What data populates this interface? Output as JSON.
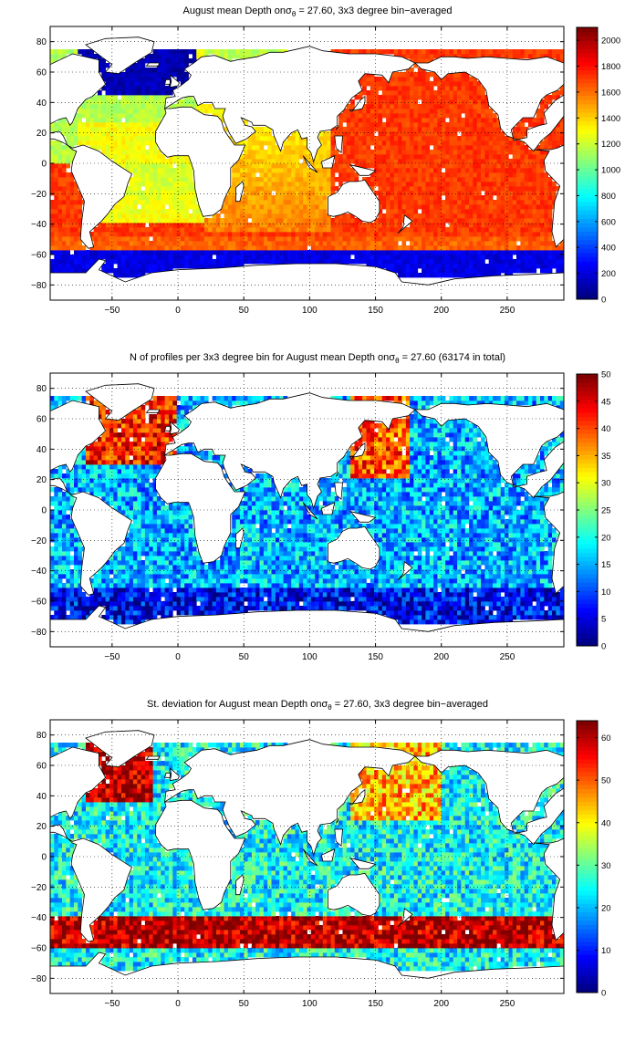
{
  "chart_data": [
    {
      "type": "heatmap",
      "title_prefix": "August mean Depth on",
      "title_sigma": "σ",
      "title_sub": "θ",
      "title_suffix": " = 27.60, 3x3 degree bin−averaged",
      "xlim": [
        -97,
        293
      ],
      "ylim": [
        -90,
        90
      ],
      "xticks": [
        -50,
        0,
        50,
        100,
        150,
        200,
        250
      ],
      "yticks": [
        -80,
        -60,
        -40,
        -20,
        0,
        20,
        40,
        60,
        80
      ],
      "grid": true,
      "colorbar": {
        "min": 0,
        "max": 2100,
        "ticks": [
          0,
          200,
          400,
          600,
          800,
          1000,
          1200,
          1400,
          1600,
          1800,
          2000
        ]
      },
      "field": {
        "Atlantic North 30-60N": 150,
        "Atlantic subtropics 10-40N": 1350,
        "Atlantic south 0-40S": 1300,
        "Indian Ocean": 1500,
        "Pacific 40N-40S": 1700,
        "Southern Ocean 40-55S": 1850,
        "Southern Ocean 55-70S": 300
      }
    },
    {
      "type": "heatmap",
      "title_prefix": "N of profiles per 3x3 degree bin for August mean Depth on",
      "title_sigma": "σ",
      "title_sub": "θ",
      "title_suffix": " = 27.60 (63174 in total)",
      "xlim": [
        -97,
        293
      ],
      "ylim": [
        -90,
        90
      ],
      "xticks": [
        -50,
        0,
        50,
        100,
        150,
        200,
        250
      ],
      "yticks": [
        -80,
        -60,
        -40,
        -20,
        0,
        20,
        40,
        60,
        80
      ],
      "grid": true,
      "colorbar": {
        "min": 0,
        "max": 50,
        "ticks": [
          0,
          5,
          10,
          15,
          20,
          25,
          30,
          35,
          40,
          45,
          50
        ]
      },
      "field": {
        "North Atlantic": 40,
        "Northwest Pacific": 42,
        "Open ocean typical": 15,
        "Southern Ocean": 6
      }
    },
    {
      "type": "heatmap",
      "title_prefix": "St. deviation for August mean Depth on",
      "title_sigma": "σ",
      "title_sub": "θ",
      "title_suffix": " = 27.60, 3x3 degree bin−averaged",
      "xlim": [
        -97,
        293
      ],
      "ylim": [
        -90,
        90
      ],
      "xticks": [
        -50,
        0,
        50,
        100,
        150,
        200,
        250
      ],
      "yticks": [
        -80,
        -60,
        -40,
        -20,
        0,
        20,
        40,
        60,
        80
      ],
      "grid": true,
      "colorbar": {
        "min": 0,
        "max": 64,
        "ticks": [
          0,
          10,
          20,
          30,
          40,
          50,
          60
        ]
      },
      "field": {
        "North Atlantic": 60,
        "Kuroshio": 50,
        "Open ocean typical": 25,
        "Antarctic Circumpolar Current": 62
      }
    }
  ]
}
